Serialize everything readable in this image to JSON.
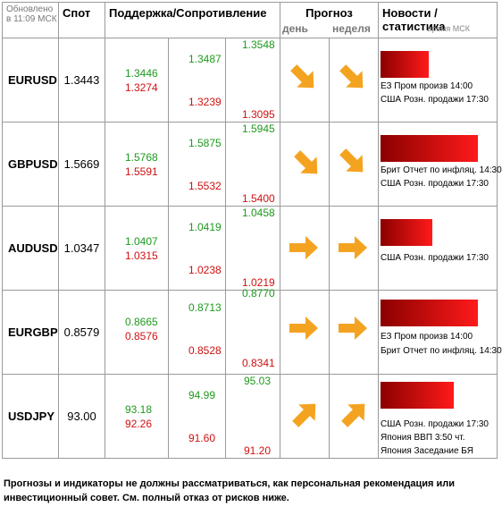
{
  "header": {
    "updated_line1": "Обновлено",
    "updated_line2": "в 11:09 МСК",
    "spot": "Спот",
    "support_resistance": "Поддержка/Сопротивление",
    "forecast": "Прогноз",
    "day": "день",
    "week": "неделя",
    "news": "Новости / статистика",
    "time": "время МСК"
  },
  "rows": [
    {
      "symbol": "EURUSD",
      "spot": "1.3443",
      "levels": [
        "1.3446",
        "1.3274",
        "1.3487",
        "1.3239",
        "1.3548",
        "1.3095"
      ],
      "day_arrow": "down-right",
      "week_arrow": "down-right",
      "news": [
        "ЕЗ Пром произв 14:00",
        "США Розн. продажи 17:30"
      ],
      "bar_fraction": 0.46
    },
    {
      "symbol": "GBPUSD",
      "spot": "1.5669",
      "levels": [
        "1.5768",
        "1.5591",
        "1.5875",
        "1.5532",
        "1.5945",
        "1.5400"
      ],
      "day_arrow": "down-right",
      "week_arrow": "down-right",
      "news": [
        "Брит Отчет по инфляц. 14:30",
        "США Розн. продажи 17:30"
      ],
      "bar_fraction": 0.82
    },
    {
      "symbol": "AUDUSD",
      "spot": "1.0347",
      "levels": [
        "1.0407",
        "1.0315",
        "1.0419",
        "1.0238",
        "1.0458",
        "1.0219"
      ],
      "day_arrow": "right",
      "week_arrow": "right",
      "news": [
        "США Розн. продажи 17:30"
      ],
      "bar_fraction": 0.45
    },
    {
      "symbol": "EURGBP",
      "spot": "0.8579",
      "levels": [
        "0.8665",
        "0.8576",
        "0.8713",
        "0.8528",
        "0.8770",
        "0.8341"
      ],
      "day_arrow": "right",
      "week_arrow": "right",
      "news": [
        "ЕЗ Пром произв 14:00",
        "Брит Отчет по инфляц. 14:30"
      ],
      "bar_fraction": 0.82
    },
    {
      "symbol": "USDJPY",
      "spot": "93.00",
      "levels": [
        "93.18",
        "92.26",
        "94.99",
        "91.60",
        "95.03",
        "91.20"
      ],
      "day_arrow": "up-right",
      "week_arrow": "up-right",
      "news": [
        "США Розн. продажи 17:30",
        "Япония ВВП 3:50 чт.",
        "Япония Заседание БЯ"
      ],
      "bar_fraction": 0.62
    }
  ],
  "disclaimer": "Прогнозы и индикаторы не должны рассматриваться, как персональная рекомендация или инвестиционный совет. См. полный отказ от рисков ниже.",
  "colors": {
    "support": "#1e9a1e",
    "resistance": "#d01010",
    "arrow": "#f4a321",
    "bar_dark": "#8b0000",
    "bar_light": "#ff1a1a"
  }
}
